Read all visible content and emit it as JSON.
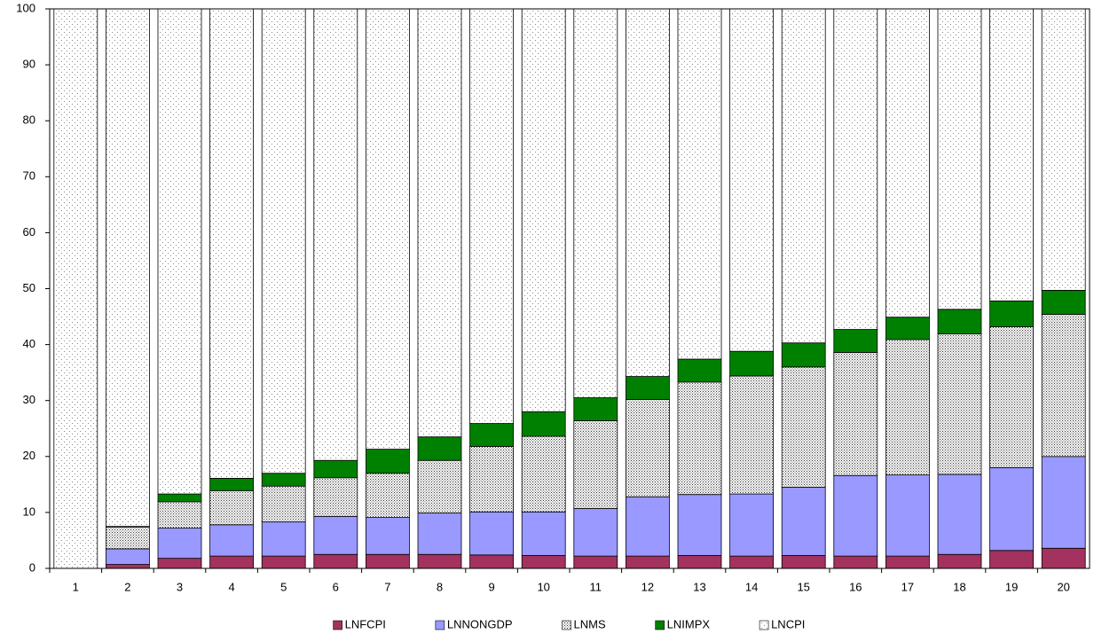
{
  "chart_data": {
    "type": "stacked_bar",
    "categories": [
      "1",
      "2",
      "3",
      "4",
      "5",
      "6",
      "7",
      "8",
      "9",
      "10",
      "11",
      "12",
      "13",
      "14",
      "15",
      "16",
      "17",
      "18",
      "19",
      "20"
    ],
    "series": [
      {
        "name": "LNFCPI",
        "color": "#a3325f",
        "values": [
          0,
          0.7,
          1.8,
          2.2,
          2.2,
          2.5,
          2.5,
          2.5,
          2.4,
          2.3,
          2.2,
          2.2,
          2.3,
          2.2,
          2.3,
          2.2,
          2.2,
          2.5,
          3.2,
          3.6
        ]
      },
      {
        "name": "LNNONGDP",
        "color": "#9999ff",
        "values": [
          0,
          2.8,
          5.4,
          5.6,
          6.1,
          6.8,
          6.6,
          7.4,
          7.7,
          7.8,
          8.5,
          10.6,
          10.9,
          11.1,
          12.2,
          14.4,
          14.5,
          14.3,
          14.8,
          16.4
        ]
      },
      {
        "name": "LNMS",
        "color": "#333333",
        "pattern": "dense",
        "values": [
          0,
          3.9,
          4.7,
          6.1,
          6.4,
          6.9,
          7.9,
          9.4,
          11.7,
          13.5,
          15.7,
          17.4,
          20.1,
          21.1,
          21.5,
          22.0,
          24.2,
          25.1,
          25.2,
          25.4
        ]
      },
      {
        "name": "LNIMPX",
        "color": "#008000",
        "values": [
          0,
          0.1,
          1.4,
          2.2,
          2.3,
          3.1,
          4.3,
          4.2,
          4.1,
          4.4,
          4.1,
          4.1,
          4.1,
          4.4,
          4.3,
          4.1,
          4.0,
          4.4,
          4.6,
          4.3
        ]
      },
      {
        "name": "LNCPI",
        "color": "#888888",
        "pattern": "sparse",
        "values": [
          100,
          92.5,
          86.7,
          83.9,
          83.0,
          80.7,
          78.7,
          76.5,
          74.1,
          72.0,
          69.5,
          65.7,
          62.6,
          61.2,
          59.7,
          57.3,
          55.1,
          53.7,
          52.2,
          50.3
        ]
      }
    ],
    "ylim": [
      0,
      100
    ],
    "yticks": [
      0,
      10,
      20,
      30,
      40,
      50,
      60,
      70,
      80,
      90,
      100
    ],
    "legend": "bottom"
  }
}
